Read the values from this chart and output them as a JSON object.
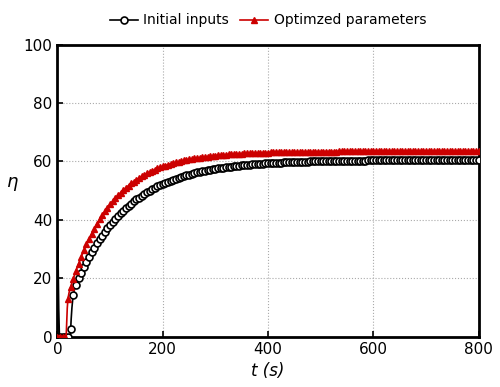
{
  "title": "",
  "xlabel": "t (s)",
  "ylabel": "η",
  "xlim": [
    0,
    800
  ],
  "ylim": [
    0,
    100
  ],
  "xticks": [
    0,
    200,
    400,
    600,
    800
  ],
  "yticks": [
    0,
    20,
    40,
    60,
    80,
    100
  ],
  "grid_color": "#aaaaaa",
  "grid_style": "dotted",
  "initial_color": "#000000",
  "optimized_color": "#cc0000",
  "initial_label": "Initial inputs",
  "optimized_label": "Optimzed parameters",
  "t_end": 800,
  "n_points": 8000,
  "figsize": [
    5.0,
    3.87
  ],
  "dpi": 100
}
